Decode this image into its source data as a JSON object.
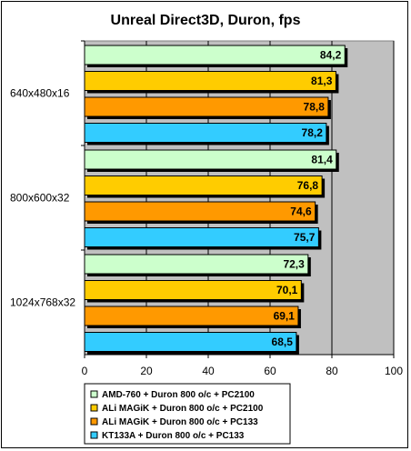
{
  "chart_data": {
    "type": "bar",
    "orientation": "horizontal",
    "title": "Unreal Direct3D, Duron, fps",
    "xlabel": "",
    "ylabel": "",
    "categories": [
      "640x480x16",
      "800x600x32",
      "1024x768x32"
    ],
    "series": [
      {
        "name": "AMD-760 + Duron 800 o/c + PC2100",
        "values": [
          84.2,
          81.4,
          72.3
        ],
        "labels": [
          "84,2",
          "81,4",
          "72,3"
        ],
        "color": "#ccffcc"
      },
      {
        "name": "ALi MAGiK + Duron 800 o/c + PC2100",
        "values": [
          81.3,
          76.8,
          70.1
        ],
        "labels": [
          "81,3",
          "76,8",
          "70,1"
        ],
        "color": "#ffcc00"
      },
      {
        "name": "ALi MAGiK + Duron 800 o/c + PC133",
        "values": [
          78.8,
          74.6,
          69.1
        ],
        "labels": [
          "78,8",
          "74,6",
          "69,1"
        ],
        "color": "#ff9900"
      },
      {
        "name": "KT133A + Duron 800 o/c + PC133",
        "values": [
          78.2,
          75.7,
          68.5
        ],
        "labels": [
          "78,2",
          "75,7",
          "68,5"
        ],
        "color": "#33ccff"
      }
    ],
    "xlim": [
      0,
      100
    ],
    "xticks": [
      "0",
      "20",
      "40",
      "60",
      "80",
      "100"
    ],
    "grid": true,
    "plot_background": "#c0c0c0",
    "legend_position": "bottom"
  }
}
